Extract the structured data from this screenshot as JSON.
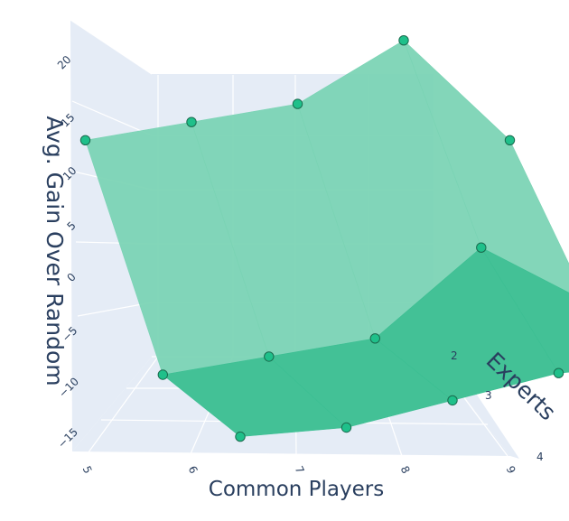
{
  "chart_data": {
    "type": "surface3d",
    "title": "",
    "xlabel": "Common Players",
    "ylabel": "Experts",
    "zlabel": "Avg. Gain Over Random",
    "x_ticks": [
      "5",
      "6",
      "7",
      "8",
      "9"
    ],
    "y_ticks": [
      "2",
      "3",
      "4"
    ],
    "z_ticks": [
      "−15",
      "−10",
      "−5",
      "0",
      "5",
      "10",
      "15",
      "20"
    ],
    "grid": true,
    "colors": {
      "surface_front": "#3dbf93",
      "surface_back": "#7ad3b4",
      "marker_fill": "#1fc08a",
      "marker_stroke": "#1a6b4e",
      "scene_bg": "#e5ecf6",
      "text": "#2a3f5f"
    },
    "points": [
      {
        "x": 5,
        "y": 2,
        "z": 11
      },
      {
        "x": 6,
        "y": 2,
        "z": 13
      },
      {
        "x": 7,
        "y": 2,
        "z": 15
      },
      {
        "x": 8,
        "y": 2,
        "z": 22
      },
      {
        "x": 9,
        "y": 2,
        "z": 11
      },
      {
        "x": 5,
        "y": 3,
        "z": -9
      },
      {
        "x": 6,
        "y": 3,
        "z": -7
      },
      {
        "x": 7,
        "y": 3,
        "z": -5
      },
      {
        "x": 8,
        "y": 3,
        "z": 5
      },
      {
        "x": 9,
        "y": 3,
        "z": -1
      },
      {
        "x": 5,
        "y": 4,
        "z": -10
      },
      {
        "x": 6,
        "y": 4,
        "z": -9
      },
      {
        "x": 7,
        "y": 4,
        "z": -6
      },
      {
        "x": 8,
        "y": 4,
        "z": -3
      },
      {
        "x": 9,
        "y": 4,
        "z": -2
      }
    ]
  }
}
